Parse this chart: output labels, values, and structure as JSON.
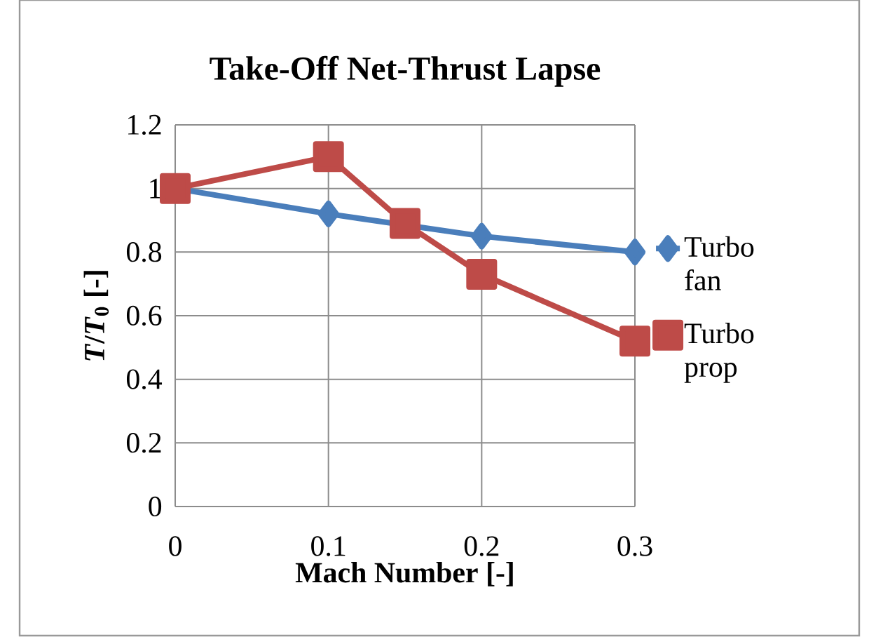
{
  "chart_data": {
    "type": "line",
    "title": "Take-Off  Net-Thrust Lapse",
    "xlabel": "Mach Number [-]",
    "ylabel": "*T*/*T*$_{0}$ [-]",
    "xlim": [
      0,
      0.3
    ],
    "xticks": [
      0,
      0.1,
      0.2,
      0.3
    ],
    "ylim": [
      0,
      1.2
    ],
    "yticks": [
      0,
      0.2,
      0.4,
      0.6,
      0.8,
      1,
      1.2
    ],
    "grid": true,
    "legend": "right",
    "series": [
      {
        "name": "Turbo fan",
        "color": "#4a7ebb",
        "marker": "diamond",
        "x": [
          0,
          0.1,
          0.2,
          0.3
        ],
        "values": [
          1.0,
          0.92,
          0.85,
          0.8
        ]
      },
      {
        "name": "Turbo prop",
        "color": "#be4b48",
        "marker": "square",
        "x": [
          0,
          0.1,
          0.15,
          0.2,
          0.3
        ],
        "values": [
          1.0,
          1.1,
          0.89,
          0.73,
          0.52
        ]
      }
    ]
  }
}
